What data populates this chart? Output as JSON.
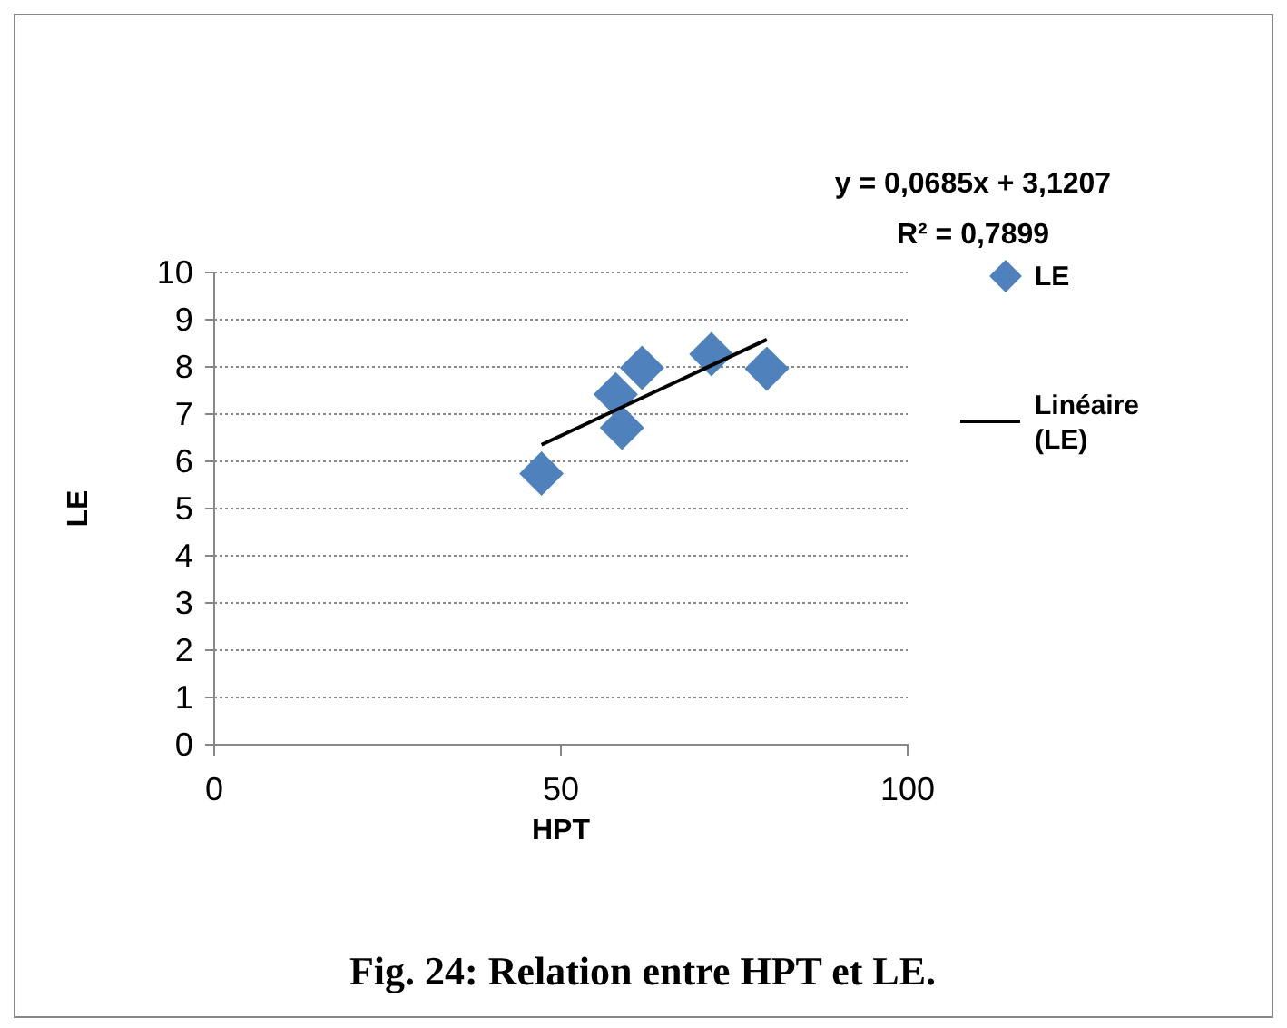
{
  "chart_data": {
    "type": "scatter",
    "xlabel": "HPT",
    "ylabel": "LE",
    "xlim": [
      0,
      100
    ],
    "xticks": [
      0,
      50,
      100
    ],
    "ylim": [
      0,
      10
    ],
    "yticks": [
      0,
      1,
      2,
      3,
      4,
      5,
      6,
      7,
      8,
      9,
      10
    ],
    "grid": "y",
    "legend": "right",
    "series": [
      {
        "name": "LE",
        "color": "#4f81bd",
        "marker": "diamond",
        "x": [
          47.2,
          57.9,
          58.8,
          61.7,
          71.7,
          79.7
        ],
        "values": [
          5.74,
          7.42,
          6.71,
          7.98,
          8.27,
          7.96
        ]
      },
      {
        "name": "Linéaire (LE)",
        "type": "line",
        "color": "#000000",
        "marker": "none",
        "line_style": "solid",
        "x": [
          47.2,
          79.7
        ],
        "values": [
          6.35,
          8.58
        ]
      }
    ],
    "annotations": [
      "y = 0,0685x + 3,1207",
      "R² = 0,7899",
      "Fig. 24: Relation entre HPT et LE."
    ]
  }
}
